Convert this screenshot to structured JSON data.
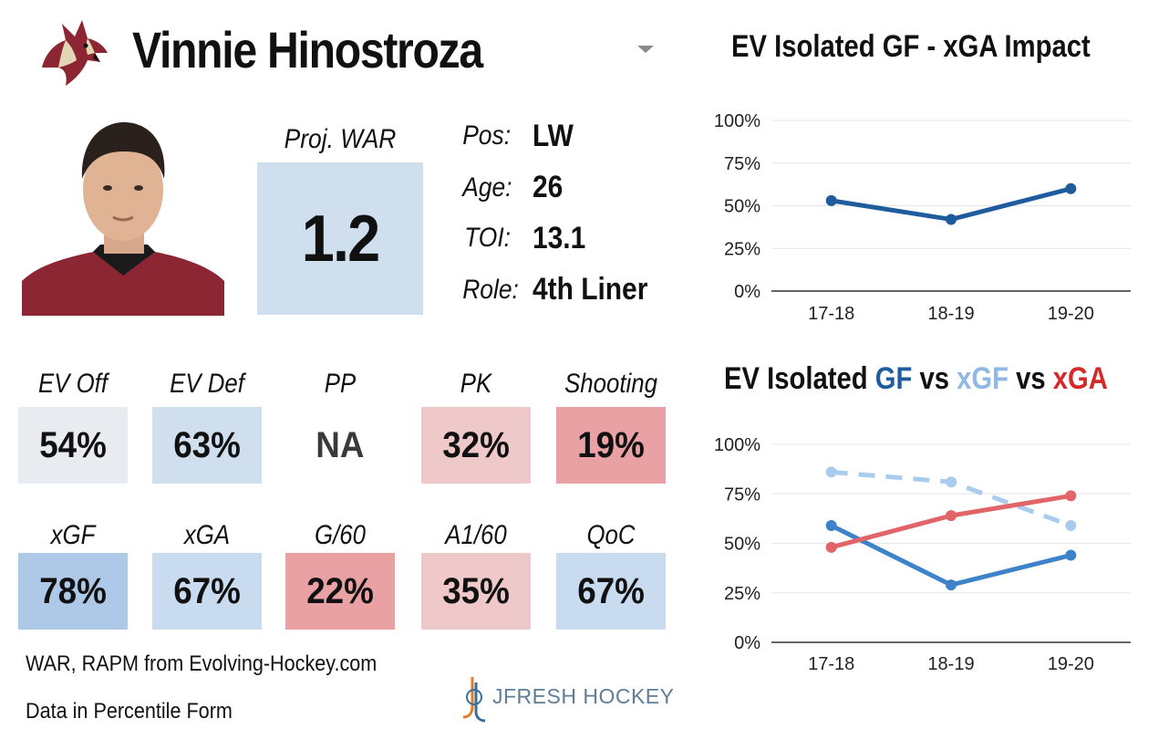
{
  "header": {
    "player_name": "Vinnie Hinostroza",
    "team_logo_icon": "coyote-head-icon",
    "dropdown_icon": "dropdown-arrow-icon"
  },
  "photo": {
    "icon": "player-headshot-icon"
  },
  "projection": {
    "label": "Proj. WAR",
    "value": "1.2",
    "color": "#d0dfee"
  },
  "info": [
    {
      "label": "Pos:",
      "value": "LW"
    },
    {
      "label": "Age:",
      "value": "26"
    },
    {
      "label": "TOI:",
      "value": "13.1"
    },
    {
      "label": "Role:",
      "value": "4th Liner"
    }
  ],
  "percentiles": [
    {
      "label": "EV Off",
      "value": "54%",
      "color": "#e8ecf1"
    },
    {
      "label": "EV Def",
      "value": "63%",
      "color": "#d0dfee"
    },
    {
      "label": "PP",
      "value": "NA",
      "color": "#ffffff"
    },
    {
      "label": "PK",
      "value": "32%",
      "color": "#efc9ca"
    },
    {
      "label": "Shooting",
      "value": "19%",
      "color": "#e9a1a3"
    },
    {
      "label": "xGF",
      "value": "78%",
      "color": "#adc9e7"
    },
    {
      "label": "xGA",
      "value": "67%",
      "color": "#c9dbee"
    },
    {
      "label": "G/60",
      "value": "22%",
      "color": "#e9a1a3"
    },
    {
      "label": "A1/60",
      "value": "35%",
      "color": "#efc9ca"
    },
    {
      "label": "QoC",
      "value": "67%",
      "color": "#c9dbee"
    }
  ],
  "footer": {
    "source": "WAR, RAPM from  Evolving-Hockey.com",
    "note": "Data in Percentile Form",
    "brand": "JFRESH HOCKEY",
    "brand_icon": "jfresh-logo-icon"
  },
  "chart_data": [
    {
      "type": "line",
      "title": "EV Isolated GF - xGA Impact",
      "categories": [
        "17-18",
        "18-19",
        "19-20"
      ],
      "ylim": [
        0,
        100
      ],
      "yticks": [
        "0%",
        "25%",
        "50%",
        "75%",
        "100%"
      ],
      "grid": true,
      "series": [
        {
          "values": [
            53,
            42,
            60
          ],
          "color": "#1f5c9e",
          "dashed": false
        }
      ]
    },
    {
      "type": "line",
      "title_parts": [
        {
          "text": "EV Isolated ",
          "color": "#111111"
        },
        {
          "text": "GF",
          "color": "#1f5c9e"
        },
        {
          "text": " vs ",
          "color": "#111111"
        },
        {
          "text": "xGF",
          "color": "#8fb8e4"
        },
        {
          "text": " vs ",
          "color": "#111111"
        },
        {
          "text": "xGA",
          "color": "#d42a2a"
        }
      ],
      "categories": [
        "17-18",
        "18-19",
        "19-20"
      ],
      "ylim": [
        0,
        100
      ],
      "yticks": [
        "0%",
        "25%",
        "50%",
        "75%",
        "100%"
      ],
      "grid": true,
      "series": [
        {
          "name": "GF",
          "values": [
            59,
            29,
            44
          ],
          "color": "#3e82c9",
          "dashed": false
        },
        {
          "name": "xGF",
          "values": [
            86,
            81,
            59
          ],
          "color": "#a9cbec",
          "dashed": true
        },
        {
          "name": "xGA",
          "values": [
            48,
            64,
            74
          ],
          "color": "#e06468",
          "dashed": false
        }
      ]
    }
  ]
}
